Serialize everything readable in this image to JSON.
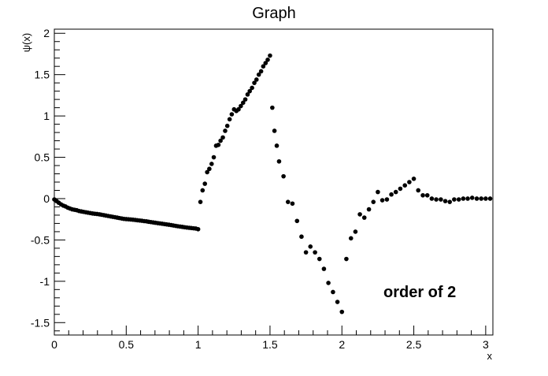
{
  "chart_data": {
    "type": "scatter",
    "title": "Graph",
    "xlabel": "x",
    "ylabel": "ψ(x)",
    "xlim": [
      0,
      3.05
    ],
    "ylim": [
      -1.65,
      2.05
    ],
    "grid": false,
    "legend": "none",
    "marker_color": "#000000",
    "annotation": "order of 2",
    "x_ticks": [
      {
        "value": 0,
        "label": "0"
      },
      {
        "value": 0.5,
        "label": "0.5"
      },
      {
        "value": 1,
        "label": "1"
      },
      {
        "value": 1.5,
        "label": "1.5"
      },
      {
        "value": 2,
        "label": "2"
      },
      {
        "value": 2.5,
        "label": "2.5"
      },
      {
        "value": 3,
        "label": "3"
      }
    ],
    "y_ticks": [
      {
        "value": -1.5,
        "label": "-1.5"
      },
      {
        "value": -1,
        "label": "-1"
      },
      {
        "value": -0.5,
        "label": "-0.5"
      },
      {
        "value": 0,
        "label": "0"
      },
      {
        "value": 0.5,
        "label": "0.5"
      },
      {
        "value": 1,
        "label": "1"
      },
      {
        "value": 1.5,
        "label": "1.5"
      },
      {
        "value": 2,
        "label": "2"
      }
    ],
    "series": [
      {
        "points": [
          [
            0.0,
            -0.01
          ],
          [
            0.016,
            -0.03
          ],
          [
            0.031,
            -0.05
          ],
          [
            0.047,
            -0.07
          ],
          [
            0.063,
            -0.085
          ],
          [
            0.078,
            -0.095
          ],
          [
            0.094,
            -0.11
          ],
          [
            0.109,
            -0.12
          ],
          [
            0.125,
            -0.13
          ],
          [
            0.141,
            -0.135
          ],
          [
            0.156,
            -0.14
          ],
          [
            0.172,
            -0.15
          ],
          [
            0.188,
            -0.155
          ],
          [
            0.203,
            -0.16
          ],
          [
            0.219,
            -0.165
          ],
          [
            0.234,
            -0.17
          ],
          [
            0.25,
            -0.175
          ],
          [
            0.266,
            -0.18
          ],
          [
            0.281,
            -0.183
          ],
          [
            0.297,
            -0.186
          ],
          [
            0.313,
            -0.19
          ],
          [
            0.328,
            -0.195
          ],
          [
            0.344,
            -0.2
          ],
          [
            0.359,
            -0.205
          ],
          [
            0.375,
            -0.21
          ],
          [
            0.391,
            -0.215
          ],
          [
            0.406,
            -0.22
          ],
          [
            0.422,
            -0.225
          ],
          [
            0.438,
            -0.23
          ],
          [
            0.453,
            -0.235
          ],
          [
            0.469,
            -0.24
          ],
          [
            0.484,
            -0.245
          ],
          [
            0.5,
            -0.248
          ],
          [
            0.516,
            -0.25
          ],
          [
            0.531,
            -0.252
          ],
          [
            0.547,
            -0.255
          ],
          [
            0.563,
            -0.258
          ],
          [
            0.578,
            -0.262
          ],
          [
            0.594,
            -0.265
          ],
          [
            0.609,
            -0.268
          ],
          [
            0.625,
            -0.272
          ],
          [
            0.641,
            -0.275
          ],
          [
            0.656,
            -0.28
          ],
          [
            0.672,
            -0.284
          ],
          [
            0.688,
            -0.288
          ],
          [
            0.703,
            -0.292
          ],
          [
            0.719,
            -0.296
          ],
          [
            0.734,
            -0.3
          ],
          [
            0.75,
            -0.304
          ],
          [
            0.766,
            -0.308
          ],
          [
            0.781,
            -0.312
          ],
          [
            0.797,
            -0.316
          ],
          [
            0.813,
            -0.32
          ],
          [
            0.828,
            -0.325
          ],
          [
            0.844,
            -0.33
          ],
          [
            0.859,
            -0.334
          ],
          [
            0.875,
            -0.338
          ],
          [
            0.891,
            -0.342
          ],
          [
            0.906,
            -0.346
          ],
          [
            0.922,
            -0.35
          ],
          [
            0.938,
            -0.353
          ],
          [
            0.953,
            -0.356
          ],
          [
            0.969,
            -0.359
          ],
          [
            0.984,
            -0.362
          ],
          [
            1.0,
            -0.37
          ],
          [
            1.016,
            -0.04
          ],
          [
            1.031,
            0.1
          ],
          [
            1.047,
            0.18
          ],
          [
            1.063,
            0.32
          ],
          [
            1.078,
            0.36
          ],
          [
            1.094,
            0.42
          ],
          [
            1.109,
            0.5
          ],
          [
            1.125,
            0.64
          ],
          [
            1.141,
            0.65
          ],
          [
            1.156,
            0.7
          ],
          [
            1.172,
            0.74
          ],
          [
            1.188,
            0.82
          ],
          [
            1.203,
            0.88
          ],
          [
            1.219,
            0.96
          ],
          [
            1.234,
            1.02
          ],
          [
            1.25,
            1.08
          ],
          [
            1.266,
            1.06
          ],
          [
            1.281,
            1.08
          ],
          [
            1.297,
            1.12
          ],
          [
            1.313,
            1.16
          ],
          [
            1.328,
            1.2
          ],
          [
            1.344,
            1.26
          ],
          [
            1.359,
            1.3
          ],
          [
            1.375,
            1.34
          ],
          [
            1.391,
            1.4
          ],
          [
            1.406,
            1.44
          ],
          [
            1.422,
            1.5
          ],
          [
            1.438,
            1.54
          ],
          [
            1.453,
            1.6
          ],
          [
            1.469,
            1.64
          ],
          [
            1.484,
            1.68
          ],
          [
            1.5,
            1.73
          ],
          [
            1.516,
            1.1
          ],
          [
            1.531,
            0.82
          ],
          [
            1.547,
            0.64
          ],
          [
            1.563,
            0.45
          ],
          [
            1.594,
            0.27
          ],
          [
            1.625,
            -0.04
          ],
          [
            1.656,
            -0.06
          ],
          [
            1.688,
            -0.27
          ],
          [
            1.719,
            -0.46
          ],
          [
            1.75,
            -0.65
          ],
          [
            1.781,
            -0.58
          ],
          [
            1.813,
            -0.65
          ],
          [
            1.844,
            -0.73
          ],
          [
            1.875,
            -0.85
          ],
          [
            1.906,
            -1.02
          ],
          [
            1.938,
            -1.13
          ],
          [
            1.969,
            -1.25
          ],
          [
            2.0,
            -1.37
          ],
          [
            2.031,
            -0.73
          ],
          [
            2.063,
            -0.48
          ],
          [
            2.094,
            -0.4
          ],
          [
            2.125,
            -0.19
          ],
          [
            2.156,
            -0.23
          ],
          [
            2.188,
            -0.13
          ],
          [
            2.219,
            -0.04
          ],
          [
            2.25,
            0.08
          ],
          [
            2.281,
            -0.02
          ],
          [
            2.313,
            -0.01
          ],
          [
            2.344,
            0.05
          ],
          [
            2.375,
            0.08
          ],
          [
            2.406,
            0.12
          ],
          [
            2.438,
            0.16
          ],
          [
            2.469,
            0.2
          ],
          [
            2.5,
            0.24
          ],
          [
            2.531,
            0.1
          ],
          [
            2.563,
            0.04
          ],
          [
            2.594,
            0.04
          ],
          [
            2.625,
            0.0
          ],
          [
            2.656,
            -0.01
          ],
          [
            2.688,
            -0.01
          ],
          [
            2.719,
            -0.03
          ],
          [
            2.75,
            -0.04
          ],
          [
            2.781,
            -0.01
          ],
          [
            2.813,
            -0.01
          ],
          [
            2.844,
            0.0
          ],
          [
            2.875,
            0.0
          ],
          [
            2.906,
            0.01
          ],
          [
            2.938,
            0.0
          ],
          [
            2.969,
            0.0
          ],
          [
            3.0,
            0.0
          ],
          [
            3.031,
            0.0
          ]
        ]
      }
    ]
  }
}
